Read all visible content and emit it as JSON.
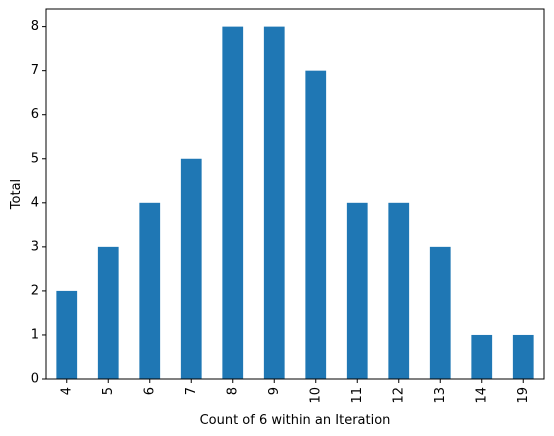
{
  "chart_data": {
    "type": "bar",
    "xlabel": "Count of 6 within an Iteration",
    "ylabel": "Total",
    "categories": [
      "4",
      "5",
      "6",
      "7",
      "8",
      "9",
      "10",
      "11",
      "12",
      "13",
      "14",
      "19"
    ],
    "values": [
      2,
      3,
      4,
      5,
      8,
      8,
      7,
      4,
      4,
      3,
      1,
      1
    ],
    "ylim": [
      0,
      8.4
    ],
    "yticks": [
      0,
      1,
      2,
      3,
      4,
      5,
      6,
      7,
      8
    ],
    "grid": false,
    "bar_color": "#1f77b4"
  }
}
